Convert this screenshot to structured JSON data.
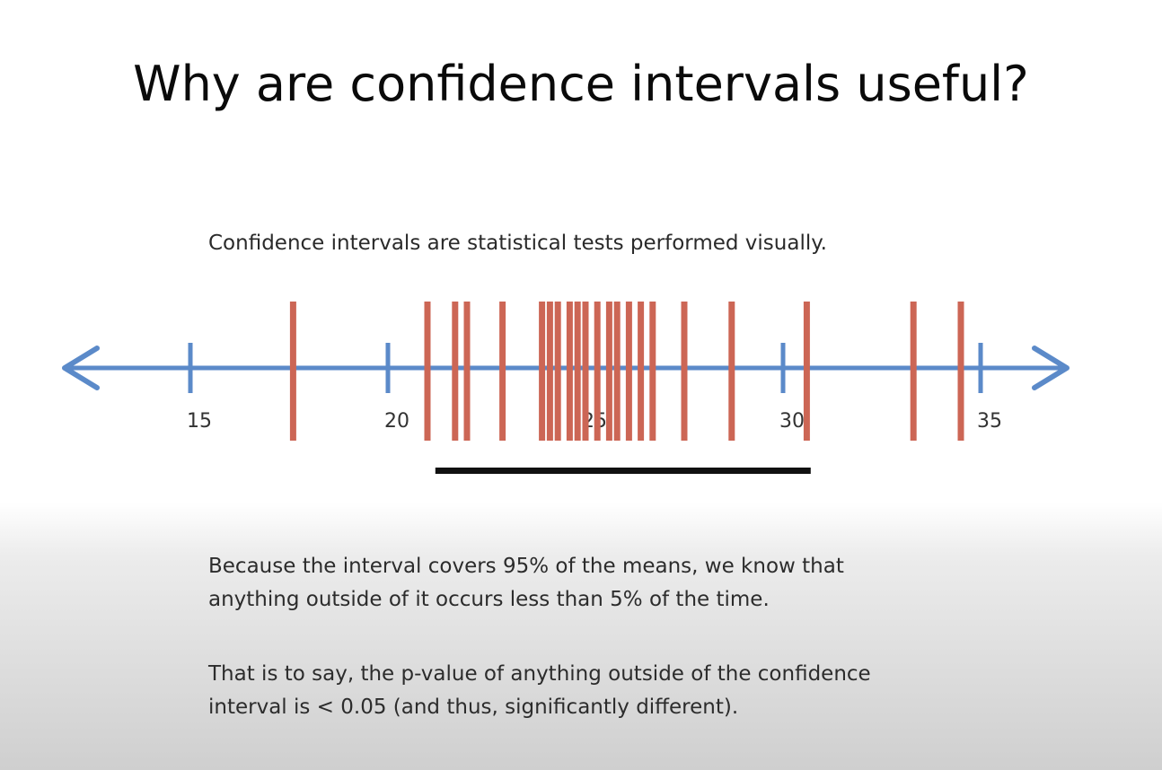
{
  "slide": {
    "title": "Why are confidence intervals useful?",
    "subtitle": "Confidence intervals are statistical tests performed visually.",
    "paragraph1_line1": "Because the interval covers 95% of the means, we know that",
    "paragraph1_line2": "anything outside of it occurs less than 5% of the time.",
    "paragraph2_line1": "That is to say, the p-value of anything outside of the confidence",
    "paragraph2_line2": "interval is < 0.05 (and thus, significantly different)."
  },
  "chart_data": {
    "type": "number-line",
    "axis_range": [
      12,
      37
    ],
    "ticks": [
      15,
      20,
      25,
      30,
      35
    ],
    "tick_labels": [
      "15",
      "20",
      "25",
      "30",
      "35"
    ],
    "sample_means": [
      17.6,
      21.0,
      21.7,
      22.0,
      22.9,
      23.9,
      24.1,
      24.3,
      24.6,
      24.8,
      25.0,
      25.3,
      25.6,
      25.8,
      26.1,
      26.4,
      26.7,
      27.5,
      28.7,
      30.6,
      33.3,
      34.5
    ],
    "confidence_interval": [
      21.2,
      30.7
    ],
    "colors": {
      "axis": "#5b8ac9",
      "means": "#cc6655",
      "interval": "#111111"
    }
  }
}
